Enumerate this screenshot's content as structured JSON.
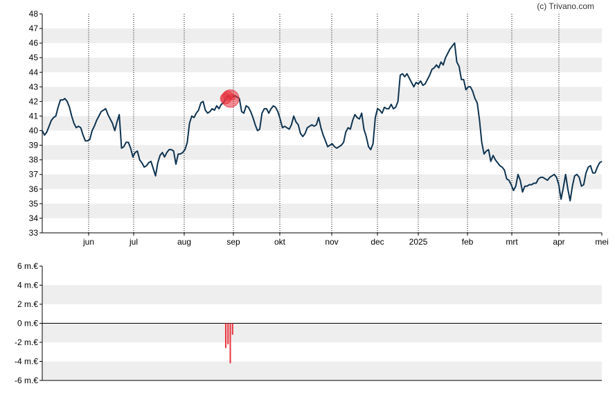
{
  "copyright": "(c) Trivano.com",
  "colors": {
    "band": "#eeeeee",
    "line": "#0d3350",
    "marker": "#e8323c",
    "axis": "#000000",
    "vgrid": "#000000"
  },
  "chart_data": [
    {
      "type": "line",
      "title": "",
      "xlabel": "",
      "ylabel": "",
      "ylim": [
        33,
        48
      ],
      "yticks": [
        "33",
        "34",
        "35",
        "36",
        "37",
        "38",
        "39",
        "40",
        "41",
        "42",
        "43",
        "44",
        "45",
        "46",
        "47",
        "48"
      ],
      "x_labels": [
        "jun",
        "jul",
        "aug",
        "sep",
        "okt",
        "nov",
        "dec",
        "2025",
        "feb",
        "mrt",
        "apr",
        "mei"
      ],
      "grid": "alternating horizontal bands, dotted vertical month lines",
      "series": [
        {
          "values": [
            40.0,
            39.7,
            39.9,
            40.3,
            40.7,
            40.9,
            41.0,
            41.6,
            42.1,
            42.1,
            42.2,
            42.0,
            41.6,
            41.0,
            40.5,
            40.2,
            40.3,
            40.2,
            39.7,
            39.3,
            39.3,
            39.4,
            40.0,
            40.3,
            40.7,
            41.0,
            41.3,
            41.4,
            41.5,
            41.1,
            40.8,
            40.5,
            40.0,
            40.6,
            41.1,
            38.8,
            38.9,
            39.2,
            39.2,
            38.8,
            38.2,
            38.5,
            38.6,
            38.0,
            37.8,
            37.5,
            37.6,
            37.8,
            37.9,
            37.4,
            36.9,
            37.8,
            38.3,
            38.5,
            38.2,
            38.5,
            38.7,
            38.7,
            38.6,
            37.7,
            38.4,
            38.4,
            38.5,
            38.7,
            39.2,
            40.5,
            41.0,
            40.9,
            41.2,
            41.4,
            41.9,
            42.0,
            41.4,
            41.2,
            41.3,
            41.5,
            41.4,
            41.7,
            41.5,
            41.8,
            41.9,
            42.2,
            42.4,
            42.2,
            42.3,
            42.4,
            42.3,
            42.2,
            41.3,
            41.2,
            41.7,
            41.6,
            41.3,
            40.9,
            40.4,
            40.0,
            40.1,
            41.2,
            41.5,
            41.5,
            41.2,
            41.5,
            41.7,
            41.6,
            41.3,
            40.8,
            40.2,
            40.3,
            40.2,
            40.1,
            40.4,
            41.0,
            40.6,
            40.4,
            39.8,
            39.6,
            39.8,
            40.2,
            40.3,
            40.4,
            40.3,
            40.4,
            40.9,
            40.2,
            39.7,
            39.3,
            38.9,
            39.0,
            39.1,
            38.9,
            38.8,
            38.9,
            39.0,
            39.2,
            39.9,
            40.2,
            40.1,
            40.7,
            41.1,
            40.9,
            40.8,
            41.2,
            40.1,
            39.6,
            38.9,
            38.7,
            39.1,
            40.9,
            41.5,
            41.4,
            41.2,
            41.6,
            41.5,
            41.5,
            41.8,
            41.5,
            41.6,
            42.0,
            43.8,
            43.9,
            43.7,
            43.9,
            43.6,
            43.3,
            43.0,
            43.3,
            43.2,
            43.4,
            43.1,
            43.2,
            43.5,
            43.8,
            44.2,
            44.3,
            44.5,
            44.3,
            44.7,
            44.5,
            45.0,
            45.3,
            45.6,
            45.8,
            46.0,
            44.7,
            44.4,
            43.5,
            43.5,
            42.8,
            43.0,
            43.0,
            42.7,
            42.2,
            41.9,
            40.7,
            39.2,
            38.4,
            38.6,
            38.7,
            37.9,
            38.3,
            38.0,
            37.8,
            37.6,
            37.5,
            37.3,
            36.7,
            36.6,
            36.3,
            35.9,
            36.2,
            37.0,
            36.6,
            35.8,
            36.2,
            36.2,
            36.3,
            36.3,
            36.4,
            36.4,
            36.7,
            36.8,
            36.8,
            36.7,
            36.6,
            36.8,
            36.9,
            37.0,
            36.8,
            36.3,
            35.3,
            36.1,
            37.0,
            36.0,
            35.2,
            36.2,
            36.9,
            37.0,
            36.8,
            36.2,
            36.3,
            37.1,
            37.5,
            37.6,
            37.1,
            37.1,
            37.5,
            37.8,
            37.9
          ]
        }
      ]
    },
    {
      "type": "bar",
      "title": "",
      "xlabel": "",
      "ylabel": "",
      "ylim": [
        -6,
        6
      ],
      "unit": "m.€",
      "yticks": [
        "6 m.€",
        "4 m.€",
        "2 m.€",
        "0 m.€",
        "-2 m.€",
        "-4 m.€",
        "-6 m.€"
      ],
      "bars": [
        {
          "index": 81,
          "value": -2.6
        },
        {
          "index": 82,
          "value": -2.2
        },
        {
          "index": 83,
          "value": -4.2
        },
        {
          "index": 84,
          "value": -1.2
        }
      ]
    }
  ]
}
